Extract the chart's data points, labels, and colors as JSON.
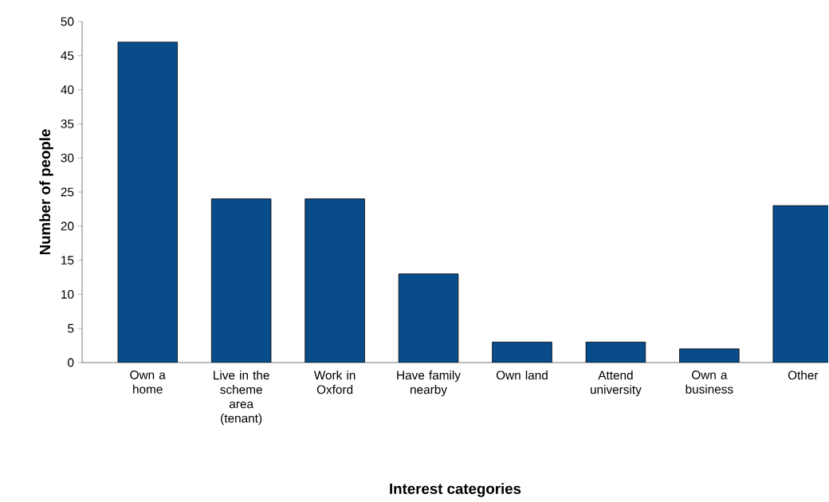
{
  "chart_data": {
    "type": "bar",
    "xlabel": "Interest categories",
    "ylabel": "Number of people",
    "categories": [
      "Own a home",
      "Live in the scheme area (tenant)",
      "Work in Oxford",
      "Have family nearby",
      "Own land",
      "Attend university",
      "Own a business",
      "Other"
    ],
    "values": [
      47,
      24,
      24,
      13,
      3,
      3,
      2,
      23
    ],
    "color": "#084c8a",
    "ylim": [
      0,
      50
    ],
    "yticks": [
      0,
      5,
      10,
      15,
      20,
      25,
      30,
      35,
      40,
      45,
      50
    ],
    "grid": false
  }
}
